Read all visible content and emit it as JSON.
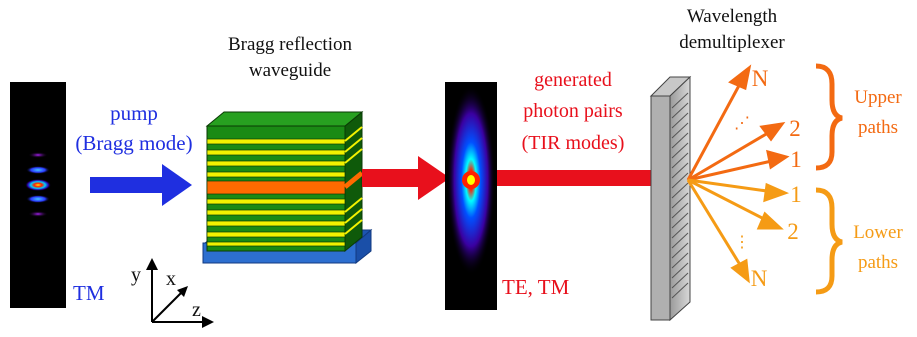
{
  "labels": {
    "waveguide_title_line1": "Bragg reflection",
    "waveguide_title_line2": "waveguide",
    "pump_line1": "pump",
    "pump_line2": "(Bragg mode)",
    "generated_line1": "generated",
    "generated_line2": "photon pairs",
    "generated_line3": "(TIR modes)",
    "demux_line1": "Wavelength",
    "demux_line2": "demultiplexer",
    "tm_label": "TM",
    "te_tm_label": "TE, TM",
    "upper_line1": "Upper",
    "upper_line2": "paths",
    "lower_line1": "Lower",
    "lower_line2": "paths",
    "axis_x": "x",
    "axis_y": "y",
    "axis_z": "z"
  },
  "outputs": {
    "upper": [
      "N",
      "2",
      "1"
    ],
    "lower": [
      "1",
      "2",
      "N"
    ],
    "upper_dots": "⋰",
    "lower_dots": "⋮"
  },
  "colors": {
    "pump": "#1f2fe0",
    "generated": "#e8101c",
    "upper": "#f36a12",
    "lower": "#f59b15",
    "text_black": "#111111",
    "layer_green": "#1a8a14",
    "layer_yellow": "#f2f200",
    "core_orange": "#ff6a00",
    "substrate_blue": "#2d6fd0"
  }
}
